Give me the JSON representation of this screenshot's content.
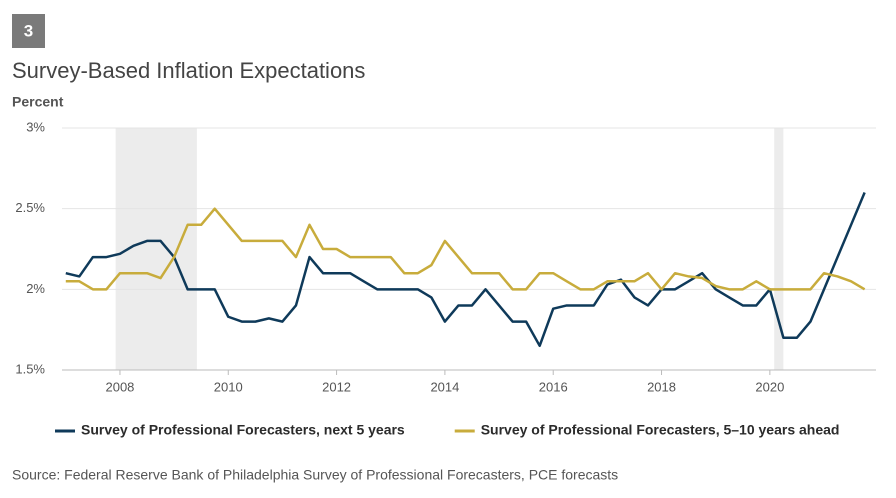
{
  "badge": "3",
  "chart_data": {
    "type": "line",
    "title": "Survey-Based Inflation Expectations",
    "y_label": "Percent",
    "source": "Source: Federal Reserve Bank of Philadelphia Survey of Professional Forecasters, PCE forecasts",
    "x": [
      2007,
      2007.25,
      2007.5,
      2007.75,
      2008,
      2008.25,
      2008.5,
      2008.75,
      2009,
      2009.25,
      2009.5,
      2009.75,
      2010,
      2010.25,
      2010.5,
      2010.75,
      2011,
      2011.25,
      2011.5,
      2011.75,
      2012,
      2012.25,
      2012.5,
      2012.75,
      2013,
      2013.25,
      2013.5,
      2013.75,
      2014,
      2014.25,
      2014.5,
      2014.75,
      2015,
      2015.25,
      2015.5,
      2015.75,
      2016,
      2016.25,
      2016.5,
      2016.75,
      2017,
      2017.25,
      2017.5,
      2017.75,
      2018,
      2018.25,
      2018.5,
      2018.75,
      2019,
      2019.25,
      2019.5,
      2019.75,
      2020,
      2020.25,
      2020.5,
      2020.75,
      2021,
      2021.25,
      2021.5,
      2021.75
    ],
    "series": [
      {
        "name": "Survey of Professional Forecasters, next 5 years",
        "color": "#0f3a5a",
        "values": [
          2.1,
          2.08,
          2.2,
          2.2,
          2.22,
          2.27,
          2.3,
          2.3,
          2.2,
          2.0,
          2.0,
          2.0,
          1.83,
          1.8,
          1.8,
          1.82,
          1.8,
          1.9,
          2.2,
          2.1,
          2.1,
          2.1,
          2.05,
          2.0,
          2.0,
          2.0,
          2.0,
          1.95,
          1.8,
          1.9,
          1.9,
          2.0,
          1.9,
          1.8,
          1.8,
          1.65,
          1.88,
          1.9,
          1.9,
          1.9,
          2.03,
          2.06,
          1.95,
          1.9,
          2.0,
          2.0,
          2.05,
          2.1,
          2.0,
          1.95,
          1.9,
          1.9,
          2.0,
          1.7,
          1.7,
          1.8,
          2.0,
          2.2,
          2.4,
          2.6
        ]
      },
      {
        "name": "Survey of Professional Forecasters, 5–10 years ahead",
        "color": "#c8ac3c",
        "values": [
          2.05,
          2.05,
          2.0,
          2.0,
          2.1,
          2.1,
          2.1,
          2.07,
          2.2,
          2.4,
          2.4,
          2.5,
          2.4,
          2.3,
          2.3,
          2.3,
          2.3,
          2.2,
          2.4,
          2.25,
          2.25,
          2.2,
          2.2,
          2.2,
          2.2,
          2.1,
          2.1,
          2.15,
          2.3,
          2.2,
          2.1,
          2.1,
          2.1,
          2.0,
          2.0,
          2.1,
          2.1,
          2.05,
          2.0,
          2.0,
          2.05,
          2.05,
          2.05,
          2.1,
          2.0,
          2.1,
          2.08,
          2.07,
          2.02,
          2.0,
          2.0,
          2.05,
          2.0,
          2.0,
          2.0,
          2.0,
          2.1,
          2.08,
          2.05,
          2.0
        ]
      }
    ],
    "recessions": [
      [
        2007.92,
        2009.42
      ],
      [
        2020.08,
        2020.25
      ]
    ],
    "recession_color": "#ececec",
    "xlim": [
      2006.93,
      2021.96
    ],
    "xticks": [
      2008,
      2010,
      2012,
      2014,
      2016,
      2018,
      2020
    ],
    "ylim": [
      1.5,
      3
    ],
    "yticks": [
      {
        "value": 1.5,
        "label": "1.5%"
      },
      {
        "value": 2,
        "label": "2%"
      },
      {
        "value": 2.5,
        "label": "2.5%"
      },
      {
        "value": 3,
        "label": "3%"
      }
    ],
    "grid": true
  }
}
